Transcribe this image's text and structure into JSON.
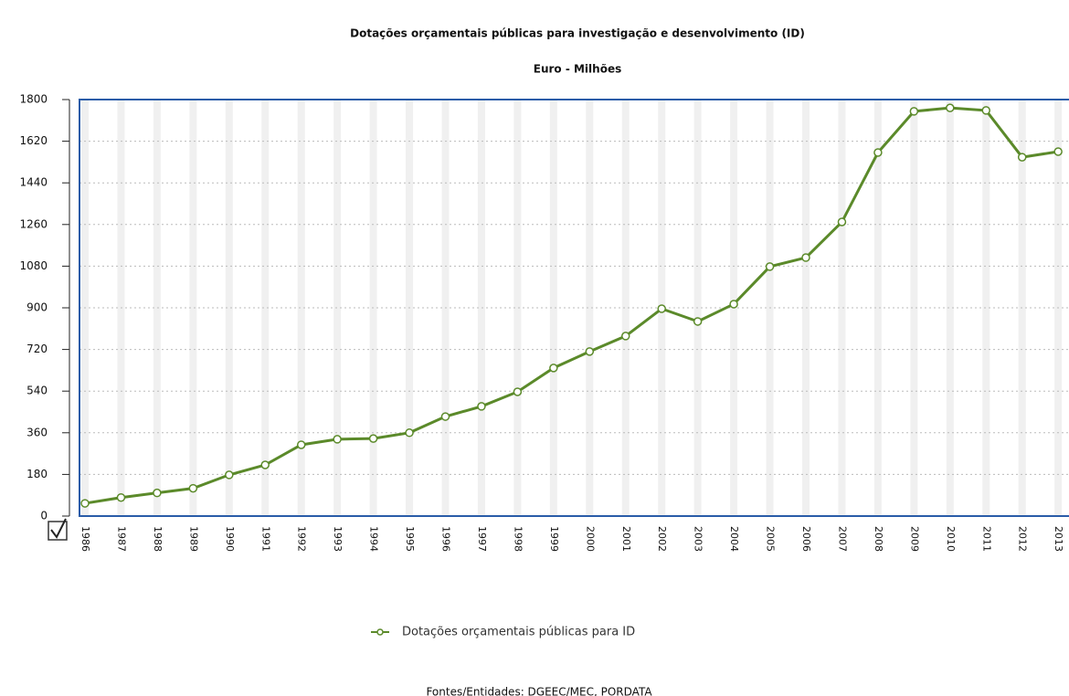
{
  "chart_data": {
    "type": "line",
    "title": "Dotações orçamentais públicas para investigação e desenvolvimento (ID)",
    "subtitle": "Euro - Milhões",
    "source": "Fontes/Entidades: DGEEC/MEC, PORDATA",
    "categories": [
      "1986",
      "1987",
      "1988",
      "1989",
      "1990",
      "1991",
      "1992",
      "1993",
      "1994",
      "1995",
      "1996",
      "1997",
      "1998",
      "1999",
      "2000",
      "2001",
      "2002",
      "2003",
      "2004",
      "2005",
      "2006",
      "2007",
      "2008",
      "2009",
      "2010",
      "2011",
      "2012",
      "2013"
    ],
    "series": [
      {
        "name": "Dotações orçamentais públicas para ID",
        "color": "#5b8a2a",
        "values": [
          55,
          80,
          100,
          120,
          178,
          221,
          308,
          332,
          335,
          360,
          430,
          474,
          537,
          640,
          711,
          778,
          896,
          841,
          916,
          1078,
          1117,
          1271,
          1571,
          1749,
          1764,
          1753,
          1551,
          1575
        ]
      }
    ],
    "ylim": [
      0,
      1800
    ],
    "yticks": [
      0,
      180,
      360,
      540,
      720,
      900,
      1080,
      1260,
      1440,
      1620,
      1800
    ],
    "grid": true,
    "legend": "bottom"
  }
}
